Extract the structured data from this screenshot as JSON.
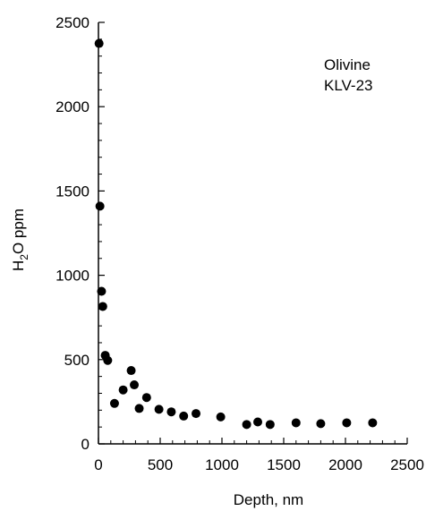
{
  "chart_data": {
    "type": "scatter",
    "title": "",
    "annotation": [
      "Olivine",
      "KLV-23"
    ],
    "xlabel": "Depth, nm",
    "ylabel": {
      "main": "H",
      "sub": "2",
      "rest": "O ppm"
    },
    "xlim": [
      0,
      2500
    ],
    "ylim": [
      0,
      2500
    ],
    "xticks": [
      0,
      500,
      1000,
      1500,
      2000,
      2500
    ],
    "yticks": [
      0,
      500,
      1000,
      1500,
      2000,
      2500
    ],
    "grid": false,
    "legend": "none",
    "marker_color": "#000000",
    "points": [
      {
        "x": 5,
        "y": 2375
      },
      {
        "x": 12,
        "y": 1410
      },
      {
        "x": 25,
        "y": 905
      },
      {
        "x": 35,
        "y": 815
      },
      {
        "x": 55,
        "y": 525
      },
      {
        "x": 75,
        "y": 495
      },
      {
        "x": 130,
        "y": 240
      },
      {
        "x": 200,
        "y": 320
      },
      {
        "x": 265,
        "y": 435
      },
      {
        "x": 290,
        "y": 350
      },
      {
        "x": 330,
        "y": 210
      },
      {
        "x": 390,
        "y": 275
      },
      {
        "x": 490,
        "y": 205
      },
      {
        "x": 590,
        "y": 190
      },
      {
        "x": 690,
        "y": 165
      },
      {
        "x": 790,
        "y": 180
      },
      {
        "x": 990,
        "y": 160
      },
      {
        "x": 1200,
        "y": 115
      },
      {
        "x": 1290,
        "y": 130
      },
      {
        "x": 1390,
        "y": 115
      },
      {
        "x": 1600,
        "y": 125
      },
      {
        "x": 1800,
        "y": 120
      },
      {
        "x": 2010,
        "y": 125
      },
      {
        "x": 2220,
        "y": 125
      }
    ]
  }
}
